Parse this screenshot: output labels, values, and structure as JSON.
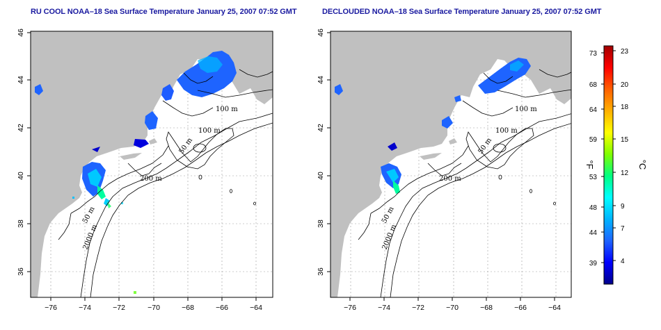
{
  "maps": [
    {
      "title": "RU COOL NOAA–18 Sea Surface Temperature January 25, 2007 07:52 GMT",
      "contour_labels": [
        "100 m",
        "100 m",
        "50 m",
        "200 m",
        "50 m",
        "2000 m"
      ]
    },
    {
      "title": "DECLOUDED NOAA–18 Sea Surface Temperature January 25, 2007 07:52 GMT",
      "contour_labels": [
        "100 m",
        "100 m",
        "50 m",
        "200 m",
        "50 m",
        "2000 m"
      ]
    }
  ],
  "axes": {
    "lon_ticks": [
      "−76",
      "−74",
      "−72",
      "−70",
      "−68",
      "−66",
      "−64"
    ],
    "lat_ticks": [
      "46",
      "44",
      "42",
      "40",
      "38",
      "36"
    ]
  },
  "colorbar": {
    "fahrenheit_ticks": [
      "73",
      "68",
      "64",
      "59",
      "53",
      "48",
      "44",
      "39"
    ],
    "celsius_ticks": [
      "23",
      "20",
      "18",
      "15",
      "12",
      "9",
      "7",
      "4"
    ],
    "fahrenheit_unit": "°F",
    "celsius_unit": "°C",
    "colors": [
      "#00008b",
      "#0000ff",
      "#1e64ff",
      "#00b4ff",
      "#00ffff",
      "#00ff80",
      "#80ff00",
      "#ffff00",
      "#ffb000",
      "#ff6000",
      "#ff0000",
      "#a00000"
    ]
  },
  "colors": {
    "land": "#c0c0c0",
    "ocean": "#ffffff",
    "title_blue": "#1a1aa0"
  }
}
